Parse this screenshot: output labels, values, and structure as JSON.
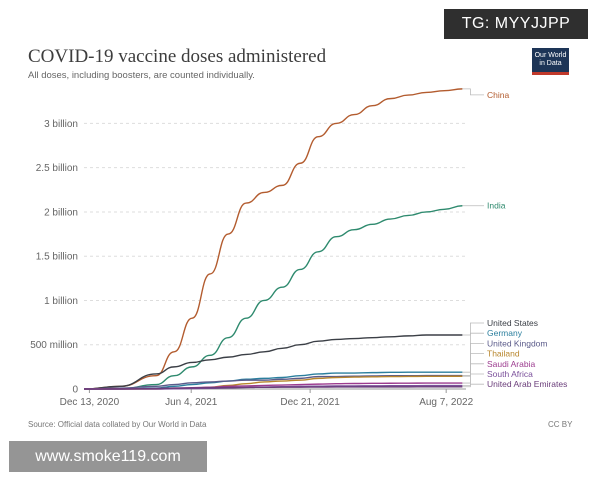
{
  "chart_data": {
    "type": "line",
    "title": "COVID-19 vaccine doses administered",
    "subtitle": "All doses, including boosters, are counted individually.",
    "ylabel": "",
    "xlabel": "",
    "y_unit": "billion",
    "ylim": [
      0,
      3.4
    ],
    "yticks": [
      {
        "value": 0,
        "label": "0"
      },
      {
        "value": 0.5,
        "label": "500 million"
      },
      {
        "value": 1,
        "label": "1 billion"
      },
      {
        "value": 1.5,
        "label": "1.5 billion"
      },
      {
        "value": 2,
        "label": "2 billion"
      },
      {
        "value": 2.5,
        "label": "2.5 billion"
      },
      {
        "value": 3,
        "label": "3 billion"
      }
    ],
    "x_range_months": [
      0,
      21.2
    ],
    "xticks": [
      {
        "value": 0.3,
        "label": "Dec 13, 2020"
      },
      {
        "value": 5.95,
        "label": "Jun 4, 2021"
      },
      {
        "value": 12.55,
        "label": "Dec 21, 2021"
      },
      {
        "value": 20.1,
        "label": "Aug 7, 2022"
      }
    ],
    "x": [
      0,
      2,
      4,
      5,
      6,
      7,
      8,
      9,
      10,
      11,
      12,
      13,
      14,
      15,
      16,
      17,
      18,
      19,
      20,
      21
    ],
    "series": [
      {
        "name": "China",
        "color": "#b35c2f",
        "values": [
          0,
          0.03,
          0.15,
          0.42,
          0.8,
          1.3,
          1.75,
          2.1,
          2.22,
          2.3,
          2.55,
          2.85,
          3.0,
          3.1,
          3.2,
          3.28,
          3.32,
          3.35,
          3.37,
          3.39
        ]
      },
      {
        "name": "India",
        "color": "#2e8a6e",
        "values": [
          0,
          0.0,
          0.05,
          0.15,
          0.25,
          0.38,
          0.58,
          0.8,
          1.0,
          1.15,
          1.35,
          1.55,
          1.72,
          1.8,
          1.86,
          1.92,
          1.96,
          2.0,
          2.03,
          2.07
        ]
      },
      {
        "name": "United States",
        "color": "#3b3f46",
        "values": [
          0,
          0.03,
          0.17,
          0.25,
          0.3,
          0.33,
          0.36,
          0.39,
          0.42,
          0.46,
          0.5,
          0.54,
          0.56,
          0.57,
          0.58,
          0.59,
          0.6,
          0.61,
          0.61,
          0.61
        ]
      },
      {
        "name": "Germany",
        "color": "#2b7f9e",
        "values": [
          0,
          0.0,
          0.01,
          0.03,
          0.05,
          0.07,
          0.09,
          0.11,
          0.12,
          0.13,
          0.15,
          0.17,
          0.18,
          0.18,
          0.185,
          0.188,
          0.19,
          0.19,
          0.19,
          0.19
        ]
      },
      {
        "name": "United Kingdom",
        "color": "#5b5b8a",
        "values": [
          0,
          0.01,
          0.03,
          0.05,
          0.07,
          0.08,
          0.09,
          0.1,
          0.1,
          0.11,
          0.12,
          0.14,
          0.14,
          0.145,
          0.148,
          0.15,
          0.15,
          0.151,
          0.152,
          0.152
        ]
      },
      {
        "name": "Thailand",
        "color": "#b8862d",
        "values": [
          0,
          0.0,
          0.0,
          0.005,
          0.01,
          0.02,
          0.04,
          0.06,
          0.08,
          0.09,
          0.1,
          0.12,
          0.13,
          0.135,
          0.138,
          0.14,
          0.142,
          0.143,
          0.144,
          0.144
        ]
      },
      {
        "name": "Saudi Arabia",
        "color": "#9c3b8f",
        "values": [
          0,
          0.0,
          0.005,
          0.01,
          0.015,
          0.02,
          0.03,
          0.035,
          0.04,
          0.045,
          0.05,
          0.055,
          0.06,
          0.062,
          0.064,
          0.065,
          0.066,
          0.067,
          0.067,
          0.067
        ]
      },
      {
        "name": "South Africa",
        "color": "#7a4f9a",
        "values": [
          0,
          0.0,
          0.0,
          0.002,
          0.005,
          0.008,
          0.012,
          0.018,
          0.022,
          0.026,
          0.03,
          0.032,
          0.034,
          0.035,
          0.036,
          0.037,
          0.037,
          0.038,
          0.038,
          0.038
        ]
      },
      {
        "name": "United Arab Emirates",
        "color": "#6a3d7a",
        "values": [
          0,
          0.002,
          0.006,
          0.01,
          0.012,
          0.014,
          0.016,
          0.018,
          0.019,
          0.02,
          0.021,
          0.022,
          0.023,
          0.023,
          0.024,
          0.024,
          0.024,
          0.025,
          0.025,
          0.025
        ]
      }
    ]
  },
  "source_note": "Source: Official data collated by Our World in Data",
  "license": "CC BY",
  "logo": {
    "line1": "Our World",
    "line2": "in Data"
  },
  "watermarks": {
    "top": "TG: MYYJJPP",
    "bottom": "www.smoke119.com"
  }
}
